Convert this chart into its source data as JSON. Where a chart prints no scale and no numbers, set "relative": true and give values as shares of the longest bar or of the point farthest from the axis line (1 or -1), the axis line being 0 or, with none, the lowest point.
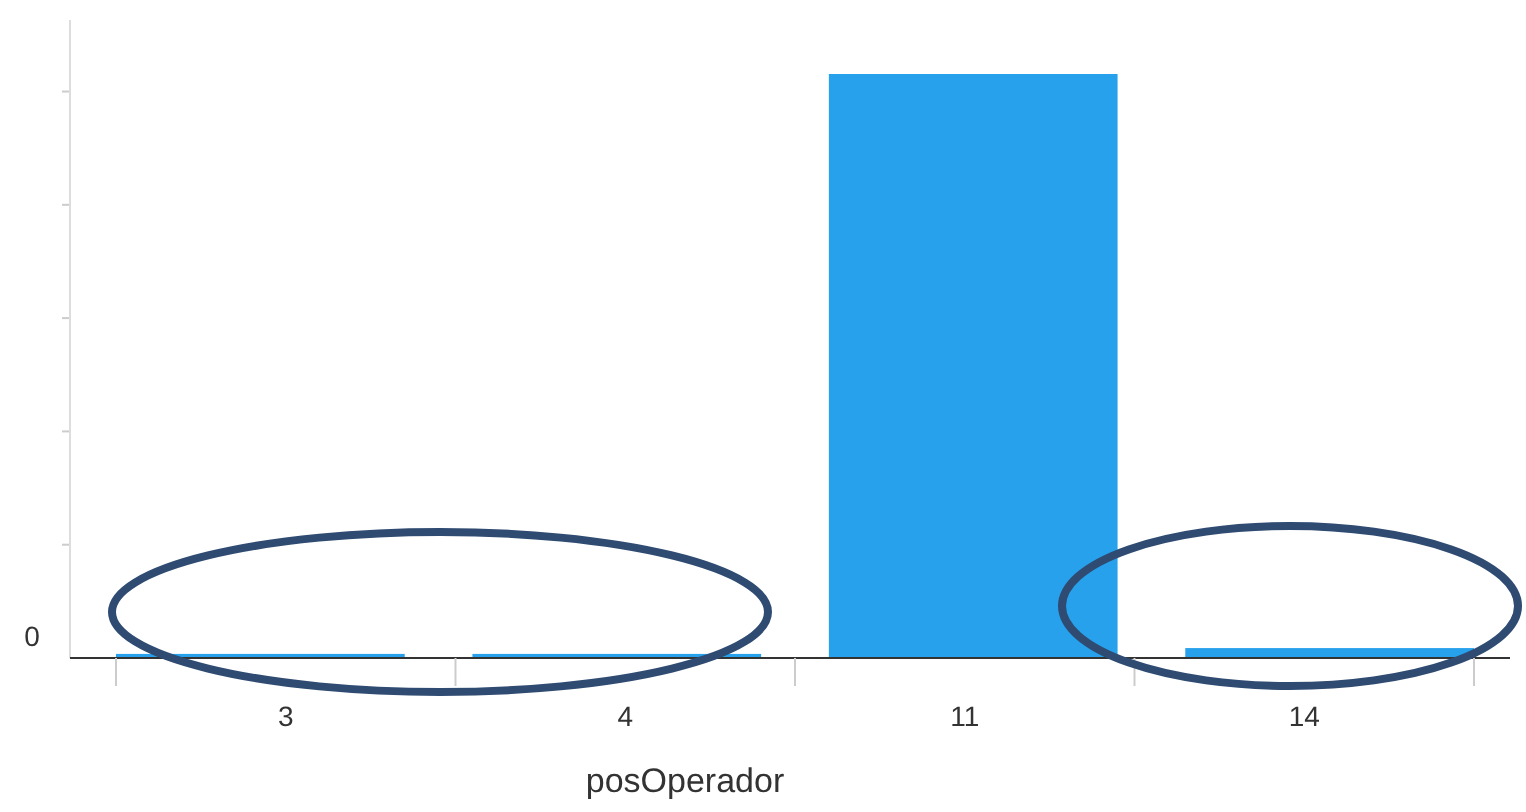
{
  "chart_data": {
    "type": "bar",
    "relative": true,
    "categories": [
      "3",
      "4",
      "11",
      "14"
    ],
    "values": [
      0.007,
      0.007,
      1,
      0.017
    ],
    "color": "#27a1eb",
    "xlabel": "posOperador",
    "annotations": [
      "0"
    ]
  }
}
